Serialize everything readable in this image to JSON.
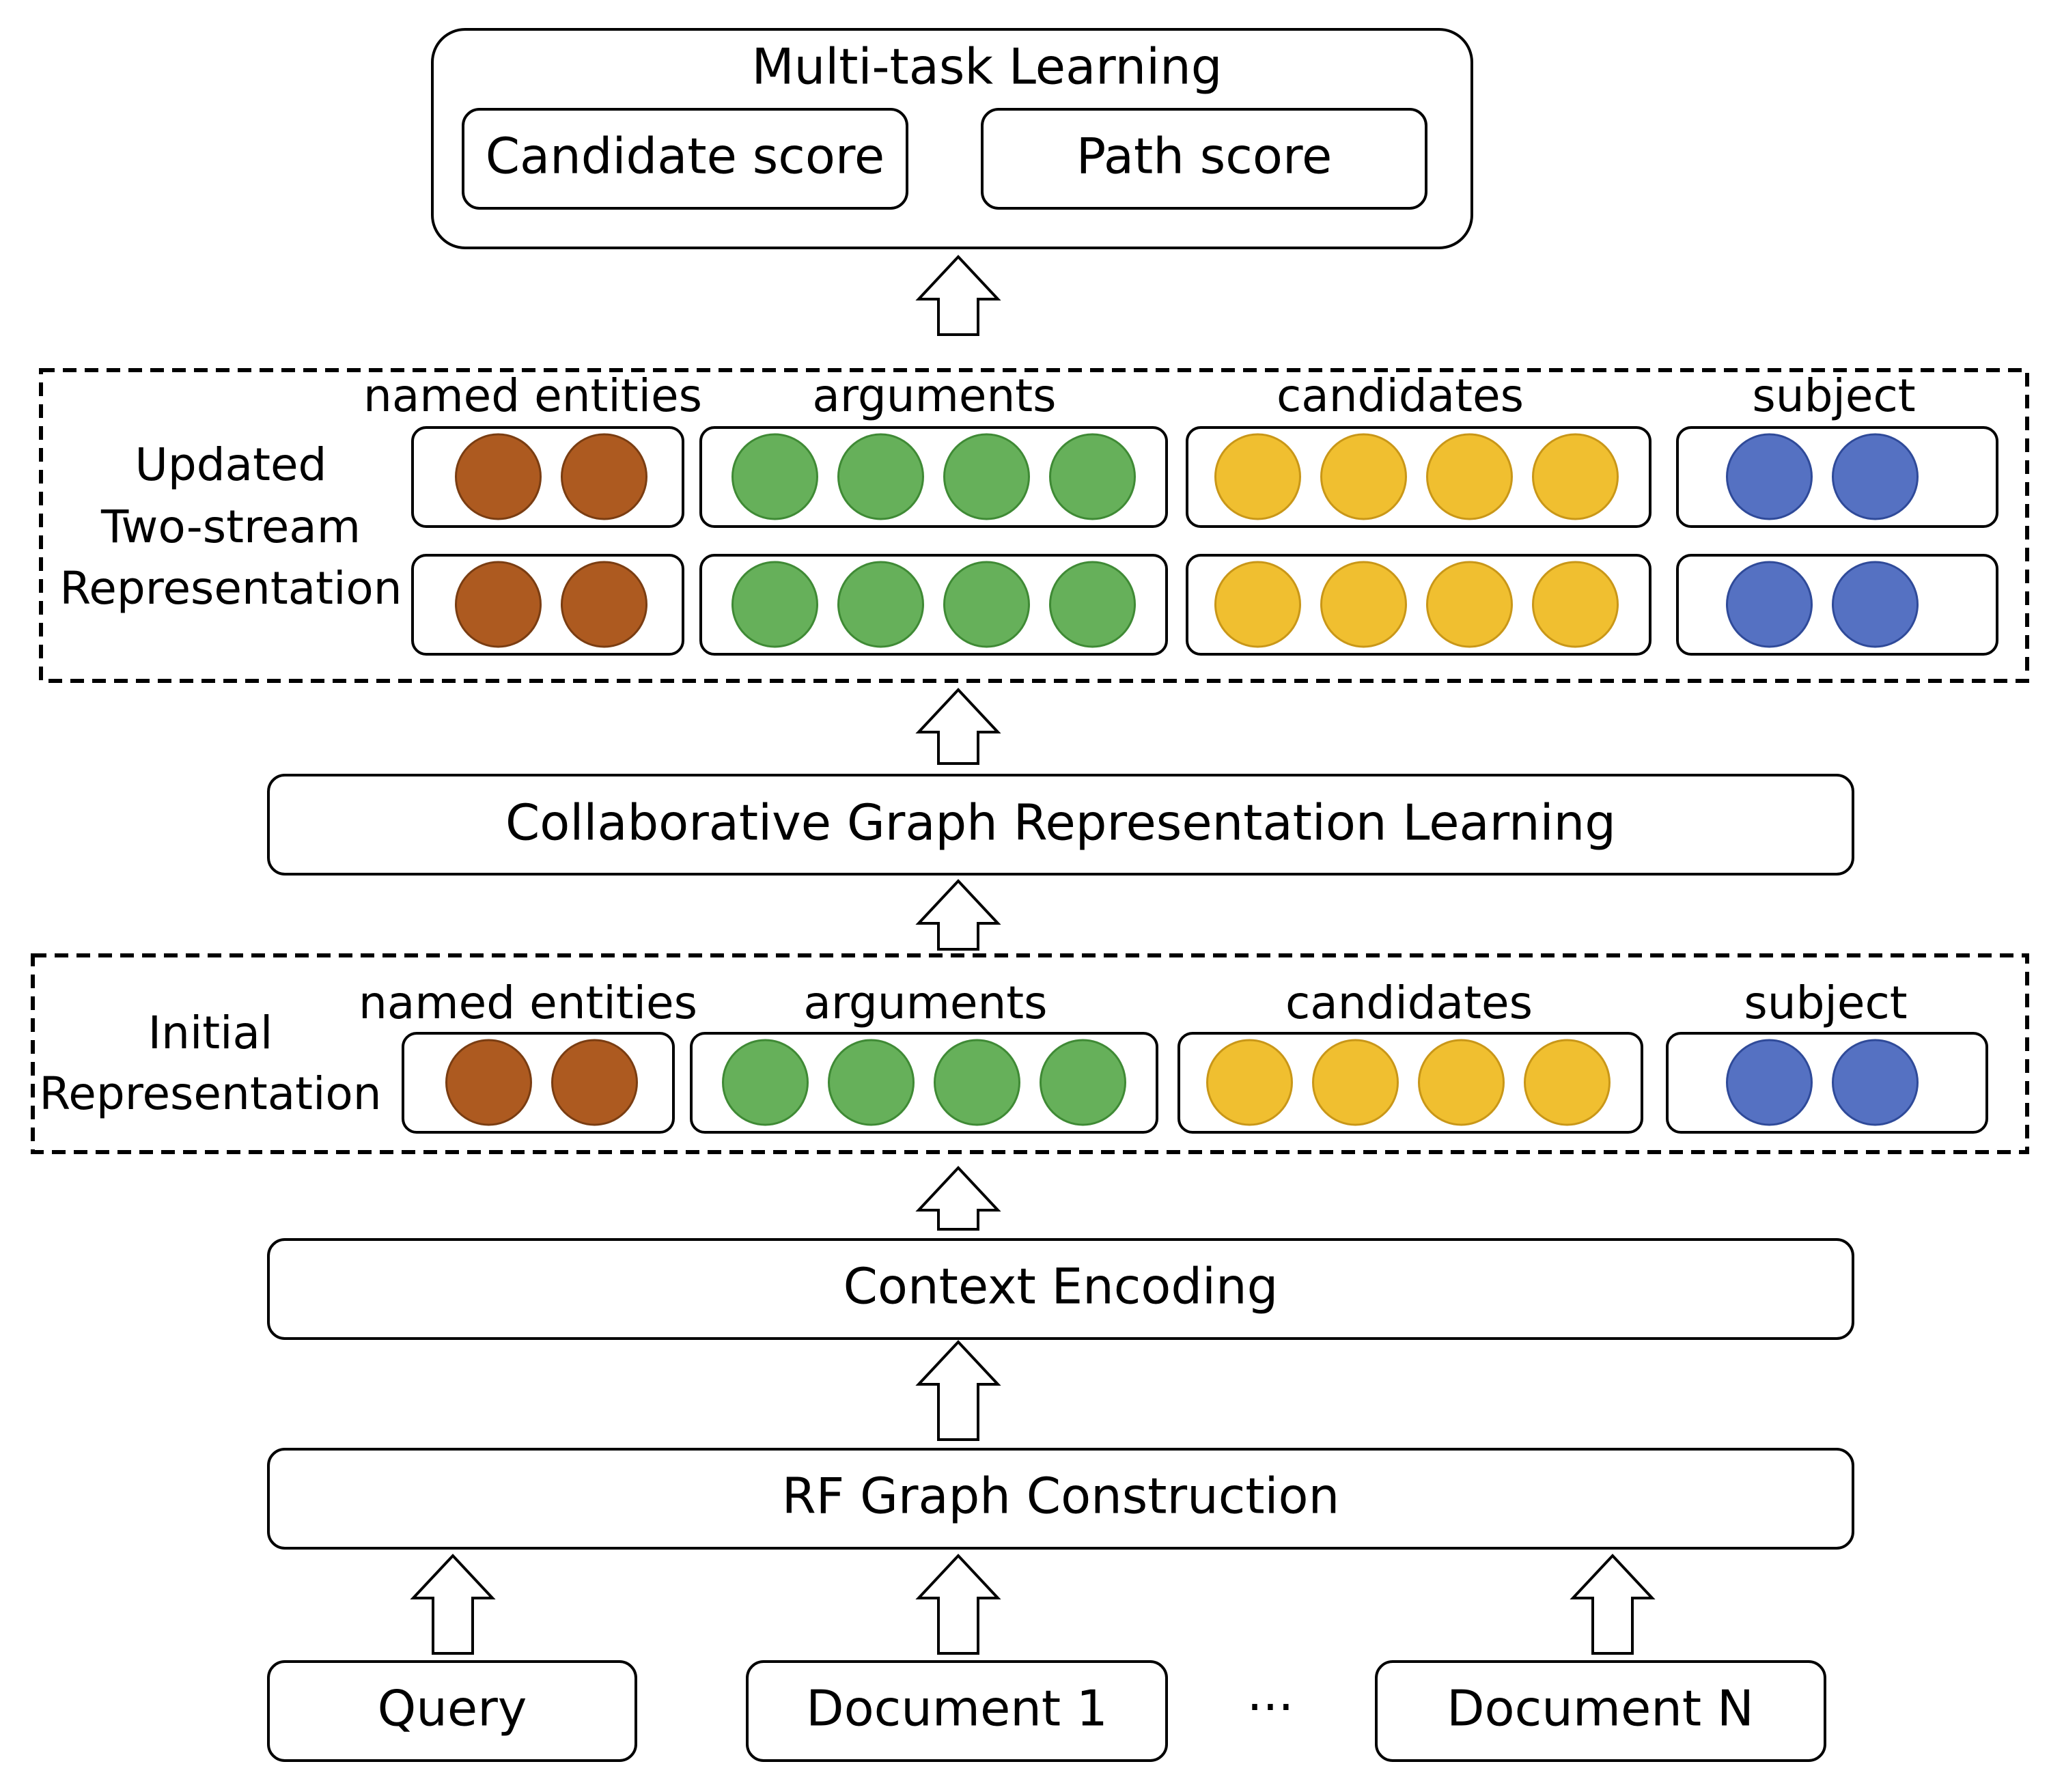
{
  "multitask": {
    "title": "Multi-task Learning",
    "candidate_score": "Candidate score",
    "path_score": "Path score"
  },
  "updated": {
    "label_lines": [
      "Updated",
      "Two-stream",
      "Representation"
    ],
    "groups": {
      "named_entities": "named entities",
      "arguments": "arguments",
      "candidates": "candidates",
      "subject": "subject"
    },
    "rows": 2
  },
  "collab": "Collaborative Graph Representation Learning",
  "initial": {
    "label_lines": [
      "Initial",
      "Representation"
    ],
    "groups": {
      "named_entities": "named entities",
      "arguments": "arguments",
      "candidates": "candidates",
      "subject": "subject"
    },
    "rows": 1
  },
  "context_encoding": "Context Encoding",
  "rf_graph": "RF Graph Construction",
  "inputs": {
    "query": "Query",
    "document1": "Document 1",
    "ellipsis": "···",
    "documentN": "Document N"
  },
  "node_counts": {
    "named_entities": 2,
    "arguments": 4,
    "candidates": 4,
    "subject": 2
  },
  "colors": {
    "named_entities": "#AD5A20",
    "arguments": "#66B05A",
    "candidates": "#F0BF30",
    "subject": "#5571C2",
    "subject_stroke": "#2F4A99"
  }
}
